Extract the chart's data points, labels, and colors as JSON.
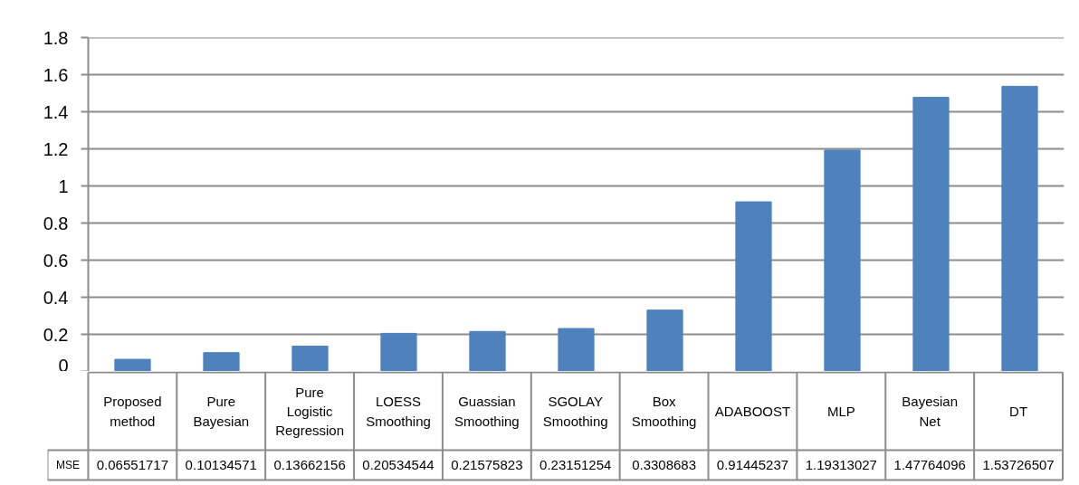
{
  "chart_data": {
    "type": "bar",
    "categories": [
      "Proposed method",
      "Pure Bayesian",
      "Pure Logistic Regression",
      "LOESS Smoothing",
      "Guassian Smoothing",
      "SGOLAY Smoothing",
      "Box Smoothing",
      "ADABOOST",
      "MLP",
      "Bayesian Net",
      "DT"
    ],
    "series": [
      {
        "name": "MSE",
        "color": "#4f81bd",
        "values": [
          0.06551717,
          0.10134571,
          0.13662156,
          0.20534544,
          0.21575823,
          0.23151254,
          0.3308683,
          0.91445237,
          1.19313027,
          1.47764096,
          1.53726507
        ]
      }
    ],
    "ylim": [
      0,
      1.8
    ],
    "yticks": [
      0,
      0.2,
      0.4,
      0.6,
      0.8,
      1,
      1.2,
      1.4,
      1.6,
      1.8
    ],
    "grid": "y",
    "data_labels": true
  }
}
